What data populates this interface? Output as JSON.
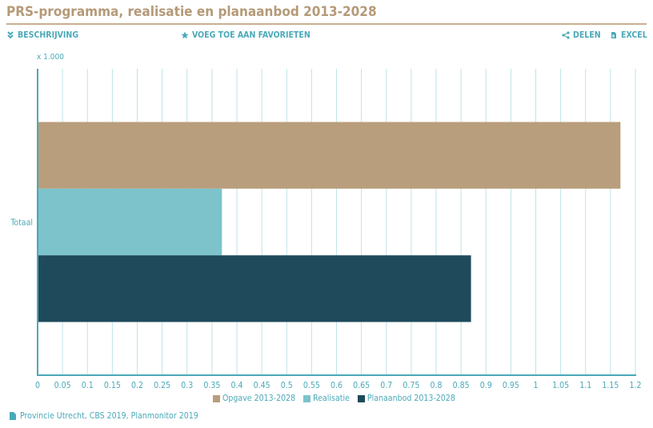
{
  "header": {
    "title": "PRS-programma, realisatie en planaanbod 2013-2028"
  },
  "toolbar": {
    "description_label": "BESCHRIJVING",
    "favorite_label": "VOEG TOE AAN FAVORIETEN",
    "share_label": "DELEN",
    "excel_label": "EXCEL"
  },
  "chart_data": {
    "type": "bar",
    "orientation": "horizontal",
    "unit_label": "x 1.000",
    "categories": [
      "Totaal"
    ],
    "series": [
      {
        "name": "Opgave 2013-2028",
        "values": [
          1.17
        ],
        "color": "#b89e7c"
      },
      {
        "name": "Realisatie",
        "values": [
          0.37
        ],
        "color": "#7cc3cc"
      },
      {
        "name": "Planaanbod 2013-2028",
        "values": [
          0.87
        ],
        "color": "#1f4a5c"
      }
    ],
    "xlim": [
      0,
      1.2
    ],
    "xticks": [
      "0",
      "0.05",
      "0.1",
      "0.15",
      "0.2",
      "0.25",
      "0.3",
      "0.35",
      "0.4",
      "0.45",
      "0.5",
      "0.55",
      "0.6",
      "0.65",
      "0.7",
      "0.75",
      "0.8",
      "0.85",
      "0.9",
      "0.95",
      "1",
      "1.05",
      "1.1",
      "1.15",
      "1.2"
    ],
    "grid": true,
    "legend_position": "bottom"
  },
  "source": {
    "text": "Provincie Utrecht, CBS 2019, Planmonitor 2019"
  },
  "colors": {
    "accent": "#4aa9b8",
    "title": "#b59a78",
    "grid": "#bfe3e8"
  }
}
